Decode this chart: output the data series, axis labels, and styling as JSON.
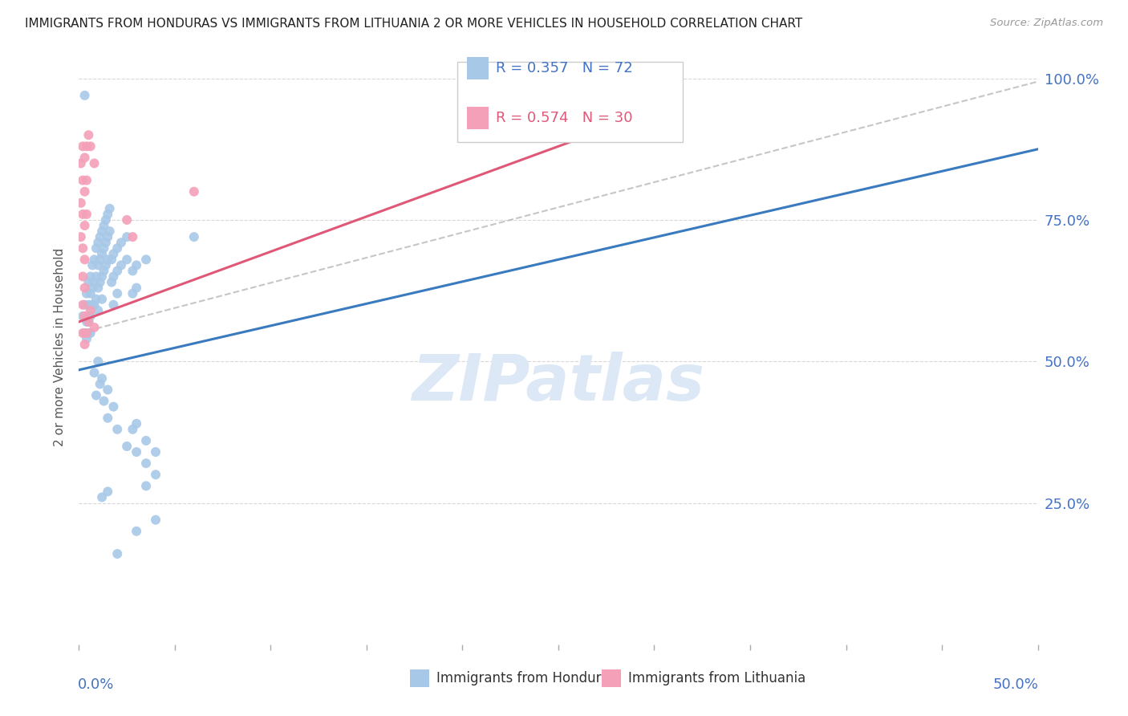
{
  "title": "IMMIGRANTS FROM HONDURAS VS IMMIGRANTS FROM LITHUANIA 2 OR MORE VEHICLES IN HOUSEHOLD CORRELATION CHART",
  "source": "Source: ZipAtlas.com",
  "ylabel": "2 or more Vehicles in Household",
  "ylabel_ticks": [
    "100.0%",
    "75.0%",
    "50.0%",
    "25.0%"
  ],
  "ytick_values": [
    1.0,
    0.75,
    0.5,
    0.25
  ],
  "xlim": [
    0.0,
    0.5
  ],
  "ylim": [
    0.0,
    1.05
  ],
  "blue_color": "#a8c8e8",
  "pink_color": "#f4a0b8",
  "blue_line_color": "#3a7abf",
  "pink_line_color": "#e05878",
  "dashed_line_color": "#b8b8b8",
  "watermark": "ZIPatlas",
  "watermark_color": "#dce8f5",
  "grid_color": "#d8d8d8",
  "tick_label_color": "#4472c4",
  "blue_scatter": [
    [
      0.003,
      0.97
    ],
    [
      0.002,
      0.58
    ],
    [
      0.003,
      0.6
    ],
    [
      0.003,
      0.55
    ],
    [
      0.004,
      0.62
    ],
    [
      0.004,
      0.57
    ],
    [
      0.004,
      0.54
    ],
    [
      0.005,
      0.64
    ],
    [
      0.005,
      0.6
    ],
    [
      0.005,
      0.57
    ],
    [
      0.005,
      0.55
    ],
    [
      0.006,
      0.65
    ],
    [
      0.006,
      0.62
    ],
    [
      0.006,
      0.58
    ],
    [
      0.006,
      0.55
    ],
    [
      0.007,
      0.67
    ],
    [
      0.007,
      0.63
    ],
    [
      0.007,
      0.6
    ],
    [
      0.008,
      0.68
    ],
    [
      0.008,
      0.64
    ],
    [
      0.008,
      0.6
    ],
    [
      0.009,
      0.7
    ],
    [
      0.009,
      0.65
    ],
    [
      0.009,
      0.61
    ],
    [
      0.01,
      0.71
    ],
    [
      0.01,
      0.67
    ],
    [
      0.01,
      0.63
    ],
    [
      0.01,
      0.59
    ],
    [
      0.011,
      0.72
    ],
    [
      0.011,
      0.68
    ],
    [
      0.011,
      0.64
    ],
    [
      0.012,
      0.73
    ],
    [
      0.012,
      0.69
    ],
    [
      0.012,
      0.65
    ],
    [
      0.012,
      0.61
    ],
    [
      0.013,
      0.74
    ],
    [
      0.013,
      0.7
    ],
    [
      0.013,
      0.66
    ],
    [
      0.014,
      0.75
    ],
    [
      0.014,
      0.71
    ],
    [
      0.014,
      0.67
    ],
    [
      0.015,
      0.76
    ],
    [
      0.015,
      0.72
    ],
    [
      0.015,
      0.68
    ],
    [
      0.016,
      0.77
    ],
    [
      0.016,
      0.73
    ],
    [
      0.017,
      0.68
    ],
    [
      0.017,
      0.64
    ],
    [
      0.018,
      0.69
    ],
    [
      0.018,
      0.65
    ],
    [
      0.018,
      0.6
    ],
    [
      0.02,
      0.7
    ],
    [
      0.02,
      0.66
    ],
    [
      0.02,
      0.62
    ],
    [
      0.022,
      0.71
    ],
    [
      0.022,
      0.67
    ],
    [
      0.025,
      0.72
    ],
    [
      0.025,
      0.68
    ],
    [
      0.028,
      0.66
    ],
    [
      0.028,
      0.62
    ],
    [
      0.03,
      0.67
    ],
    [
      0.03,
      0.63
    ],
    [
      0.035,
      0.68
    ],
    [
      0.06,
      0.72
    ],
    [
      0.008,
      0.48
    ],
    [
      0.009,
      0.44
    ],
    [
      0.01,
      0.5
    ],
    [
      0.011,
      0.46
    ],
    [
      0.012,
      0.47
    ],
    [
      0.013,
      0.43
    ],
    [
      0.015,
      0.45
    ],
    [
      0.015,
      0.4
    ],
    [
      0.018,
      0.42
    ],
    [
      0.02,
      0.38
    ],
    [
      0.025,
      0.35
    ],
    [
      0.028,
      0.38
    ],
    [
      0.03,
      0.39
    ],
    [
      0.03,
      0.34
    ],
    [
      0.035,
      0.36
    ],
    [
      0.035,
      0.32
    ],
    [
      0.035,
      0.28
    ],
    [
      0.04,
      0.34
    ],
    [
      0.04,
      0.3
    ],
    [
      0.012,
      0.26
    ],
    [
      0.015,
      0.27
    ],
    [
      0.02,
      0.16
    ],
    [
      0.03,
      0.2
    ],
    [
      0.04,
      0.22
    ]
  ],
  "pink_scatter": [
    [
      0.001,
      0.85
    ],
    [
      0.001,
      0.78
    ],
    [
      0.001,
      0.72
    ],
    [
      0.002,
      0.88
    ],
    [
      0.002,
      0.82
    ],
    [
      0.002,
      0.76
    ],
    [
      0.002,
      0.7
    ],
    [
      0.002,
      0.65
    ],
    [
      0.002,
      0.6
    ],
    [
      0.003,
      0.86
    ],
    [
      0.003,
      0.8
    ],
    [
      0.003,
      0.74
    ],
    [
      0.003,
      0.68
    ],
    [
      0.003,
      0.63
    ],
    [
      0.003,
      0.58
    ],
    [
      0.004,
      0.88
    ],
    [
      0.004,
      0.82
    ],
    [
      0.004,
      0.76
    ],
    [
      0.005,
      0.9
    ],
    [
      0.006,
      0.88
    ],
    [
      0.008,
      0.85
    ],
    [
      0.025,
      0.75
    ],
    [
      0.028,
      0.72
    ],
    [
      0.06,
      0.8
    ],
    [
      0.002,
      0.55
    ],
    [
      0.003,
      0.53
    ],
    [
      0.004,
      0.55
    ],
    [
      0.005,
      0.57
    ],
    [
      0.006,
      0.59
    ],
    [
      0.008,
      0.56
    ]
  ]
}
